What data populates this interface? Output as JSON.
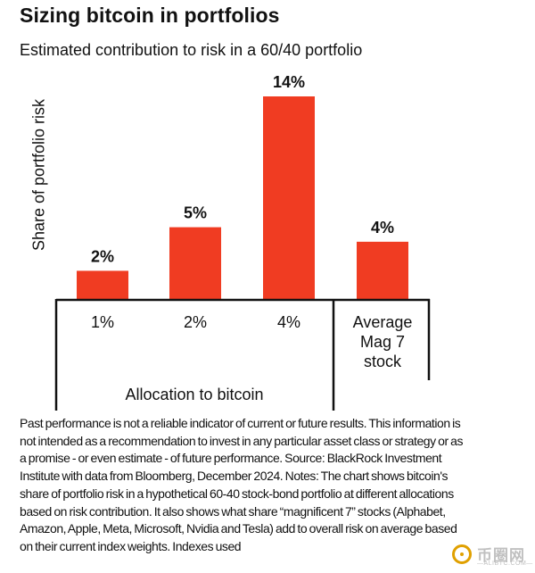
{
  "chart_data": {
    "type": "bar",
    "title": "Sizing bitcoin in portfolios",
    "subtitle": "Estimated contribution to risk in a 60/40 portfolio",
    "ylabel": "Share of portfolio risk",
    "xlabel": "Allocation to bitcoin",
    "categories": [
      "1%",
      "2%",
      "4%",
      "Average Mag 7 stock"
    ],
    "category_lines": [
      [
        "1%"
      ],
      [
        "2%"
      ],
      [
        "4%"
      ],
      [
        "Average",
        "Mag 7",
        "stock"
      ]
    ],
    "values": [
      2,
      5,
      14,
      4
    ],
    "data_labels": [
      "2%",
      "5%",
      "14%",
      "4%"
    ],
    "ylim": [
      0,
      14
    ],
    "grid": false,
    "legend": "none"
  },
  "colors": {
    "bar": "#f03c22",
    "text": "#111111",
    "axis": "#111111"
  },
  "footnote": "Past performance is not a reliable indicator of current or future results. This information is not intended as a recommendation to invest in any particular asset class or strategy or as a promise - or even estimate - of future performance. Source: BlackRock Investment Institute with data from Bloomberg, December 2024. Notes: The chart shows bitcoin's share of portfolio risk in a hypothetical 60-40 stock-bond portfolio at different allocations based on risk contribution. It also shows what share “magnificent 7” stocks (Alphabet, Amazon, Apple, Meta, Microsoft, Nvidia and Tesla) add to overall risk on average based on their current index weights. Indexes used",
  "watermark": {
    "text": "币圈网",
    "sub": "—ALIBTC.COM—"
  }
}
